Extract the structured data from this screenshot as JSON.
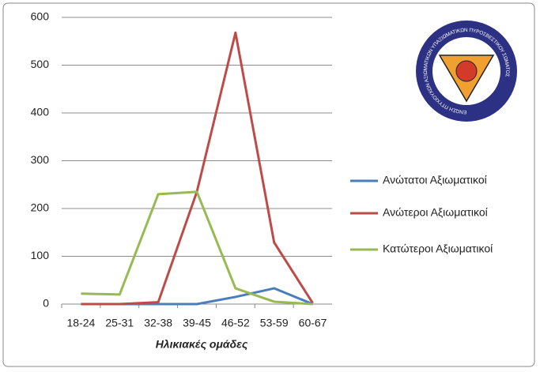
{
  "chart_data": {
    "type": "line",
    "x_label": "Ηλικιακές ομάδες",
    "categories": [
      "18-24",
      "25-31",
      "32-38",
      "39-45",
      "46-52",
      "53-59",
      "60-67"
    ],
    "series": [
      {
        "name": "Ανώτατοι Αξιωματικοί",
        "color": "#4a7ebb",
        "values": [
          0,
          0,
          0,
          0,
          15,
          33,
          0
        ]
      },
      {
        "name": "Ανώτεροι Αξιωματικοί",
        "color": "#be4b48",
        "values": [
          0,
          0,
          4,
          235,
          568,
          129,
          2
        ]
      },
      {
        "name": "Κατώτεροι Αξιωματικοί",
        "color": "#98b954",
        "values": [
          22,
          20,
          230,
          235,
          33,
          5,
          0
        ]
      }
    ],
    "ylim": [
      0,
      600
    ],
    "yticks": [
      0,
      100,
      200,
      300,
      400,
      500,
      600
    ],
    "grid": true,
    "legend": "right"
  },
  "logo": {
    "text": "ΕΝΩΣΗ ΠΤΥΧΙΟΥΧΩΝ ΑΞΙΩΜΑΤΙΚΩΝ ΥΠΑΞΙΩΜΑΤΙΚΩΝ ΠΥΡΟΣΒΕΣΤΙΚΟΥ ΣΩΜΑΤΟΣ"
  }
}
